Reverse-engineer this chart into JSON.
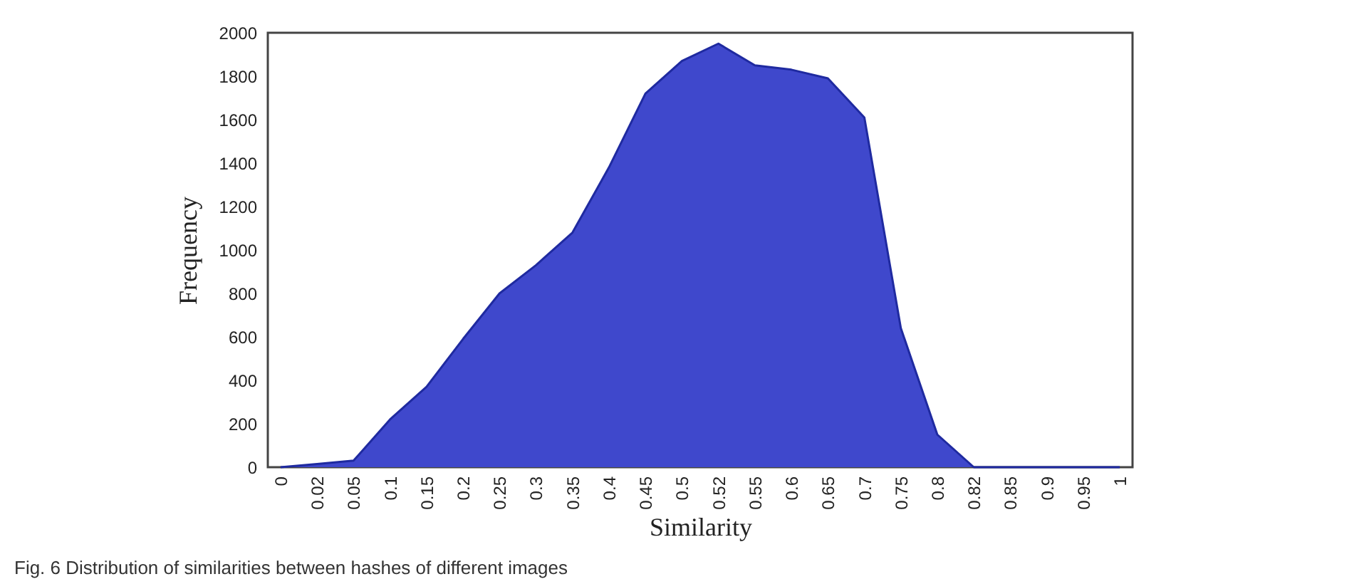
{
  "chart_data": {
    "type": "area",
    "xlabel": "Similarity",
    "ylabel": "Frequency",
    "categories": [
      "0",
      "0.02",
      "0.05",
      "0.1",
      "0.15",
      "0.2",
      "0.25",
      "0.3",
      "0.35",
      "0.4",
      "0.45",
      "0.5",
      "0.52",
      "0.55",
      "0.6",
      "0.65",
      "0.7",
      "0.75",
      "0.8",
      "0.82",
      "0.85",
      "0.9",
      "0.95",
      "1"
    ],
    "series": [
      {
        "color": "#3f48cc",
        "values": [
          0,
          15,
          30,
          220,
          370,
          590,
          800,
          930,
          1080,
          1380,
          1720,
          1870,
          1950,
          1850,
          1830,
          1790,
          1610,
          640,
          150,
          0,
          0,
          0,
          0,
          0
        ]
      }
    ],
    "ylim": [
      0,
      2000
    ],
    "yticks": [
      0,
      200,
      400,
      600,
      800,
      1000,
      1200,
      1400,
      1600,
      1800,
      2000
    ],
    "grid": false,
    "annotations": [
      "Fig. 6 Distribution of similarities between hashes of different images"
    ]
  }
}
